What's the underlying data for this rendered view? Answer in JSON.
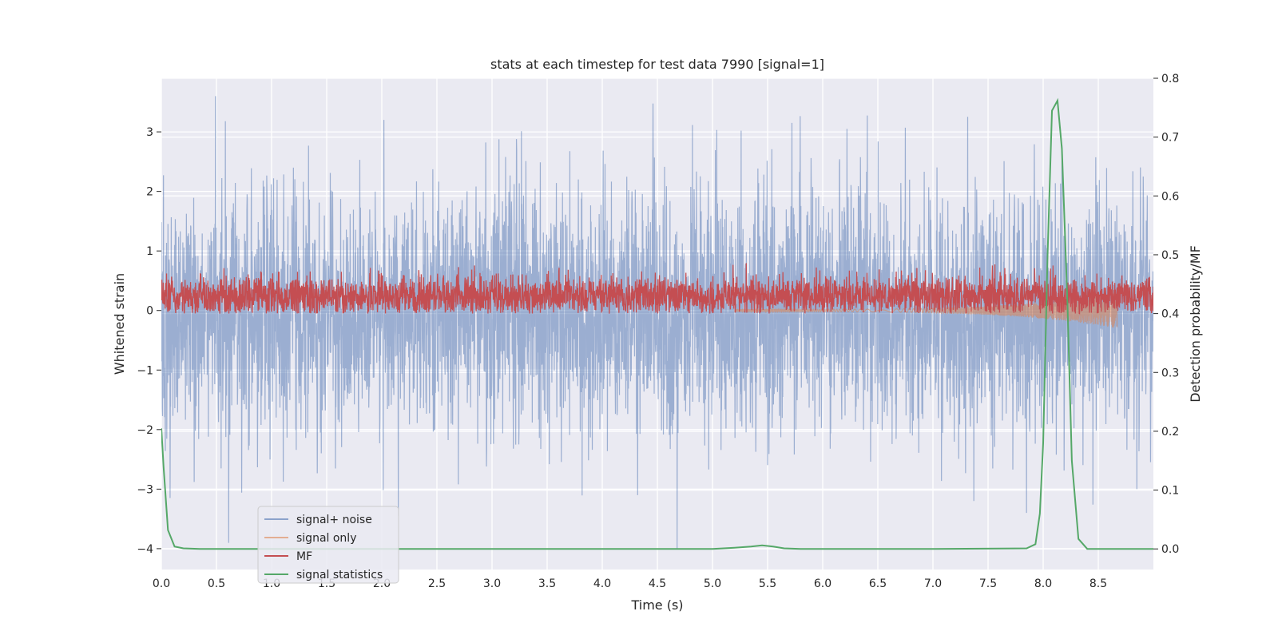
{
  "chart_data": {
    "type": "line",
    "title": "stats at each timestep for test data 7990 [signal=1]",
    "xlabel": "Time (s)",
    "ylabel": "Whitened strain",
    "y2label": "Detection probability/MF",
    "xlim": [
      0.0,
      9.0
    ],
    "ylim": [
      -4.35,
      3.9
    ],
    "y2lim": [
      -0.035,
      0.8
    ],
    "x_ticks": [
      "0.0",
      "0.5",
      "1.0",
      "1.5",
      "2.0",
      "2.5",
      "3.0",
      "3.5",
      "4.0",
      "4.5",
      "5.0",
      "5.5",
      "6.0",
      "6.5",
      "7.0",
      "7.5",
      "8.0",
      "8.5"
    ],
    "y_ticks": [
      "−4",
      "−3",
      "−2",
      "−1",
      "0",
      "1",
      "2",
      "3"
    ],
    "y2_ticks": [
      "0.0",
      "0.1",
      "0.2",
      "0.3",
      "0.4",
      "0.5",
      "0.6",
      "0.7",
      "0.8"
    ],
    "grid": true,
    "legend_position": "lower-left",
    "series": [
      {
        "name": "signal+ noise",
        "axis": "left",
        "color": "#4c72b0",
        "style": "dense-noise",
        "t_end": 9.0,
        "envelope_min": -4.0,
        "envelope_max": 3.6,
        "peaks": [
          {
            "t": 0.49,
            "y": 3.6
          },
          {
            "t": 5.72,
            "y": 3.15
          },
          {
            "t": 6.22,
            "y": 3.05
          },
          {
            "t": 6.75,
            "y": 3.07
          },
          {
            "t": 4.68,
            "y": -4.0
          },
          {
            "t": 2.15,
            "y": -3.45
          },
          {
            "t": 7.85,
            "y": -3.4
          },
          {
            "t": 4.32,
            "y": -3.1
          },
          {
            "t": 0.08,
            "y": -3.15
          },
          {
            "t": 7.37,
            "y": -3.2
          },
          {
            "t": 8.85,
            "y": -3.0
          }
        ]
      },
      {
        "name": "signal only",
        "axis": "left",
        "color": "#dd8452",
        "style": "chirp",
        "t_start": 5.2,
        "t_end": 8.67,
        "end_amplitude": -0.28
      },
      {
        "name": "MF",
        "axis": "left",
        "color": "#c44e52",
        "style": "dense-positive-noise",
        "t_end": 9.0,
        "range": [
          0.0,
          1.0
        ],
        "typical_mean": 0.3
      },
      {
        "name": "signal statistics",
        "axis": "right",
        "color": "#55a868",
        "style": "line",
        "x": [
          0.0,
          0.02,
          0.06,
          0.12,
          0.2,
          0.35,
          0.5,
          1.0,
          2.0,
          3.0,
          4.0,
          5.0,
          5.2,
          5.35,
          5.45,
          5.55,
          5.65,
          5.8,
          6.0,
          7.0,
          7.85,
          7.93,
          7.97,
          8.0,
          8.04,
          8.08,
          8.13,
          8.17,
          8.22,
          8.26,
          8.32,
          8.4,
          8.5,
          9.0
        ],
        "y": [
          0.205,
          0.14,
          0.032,
          0.004,
          0.001,
          0.0,
          0.0,
          0.0,
          0.0,
          0.0,
          0.0,
          0.0,
          0.002,
          0.004,
          0.006,
          0.004,
          0.001,
          0.0,
          0.0,
          0.0,
          0.001,
          0.008,
          0.06,
          0.18,
          0.5,
          0.745,
          0.762,
          0.68,
          0.42,
          0.15,
          0.017,
          0.0,
          0.0,
          0.0
        ]
      }
    ]
  }
}
